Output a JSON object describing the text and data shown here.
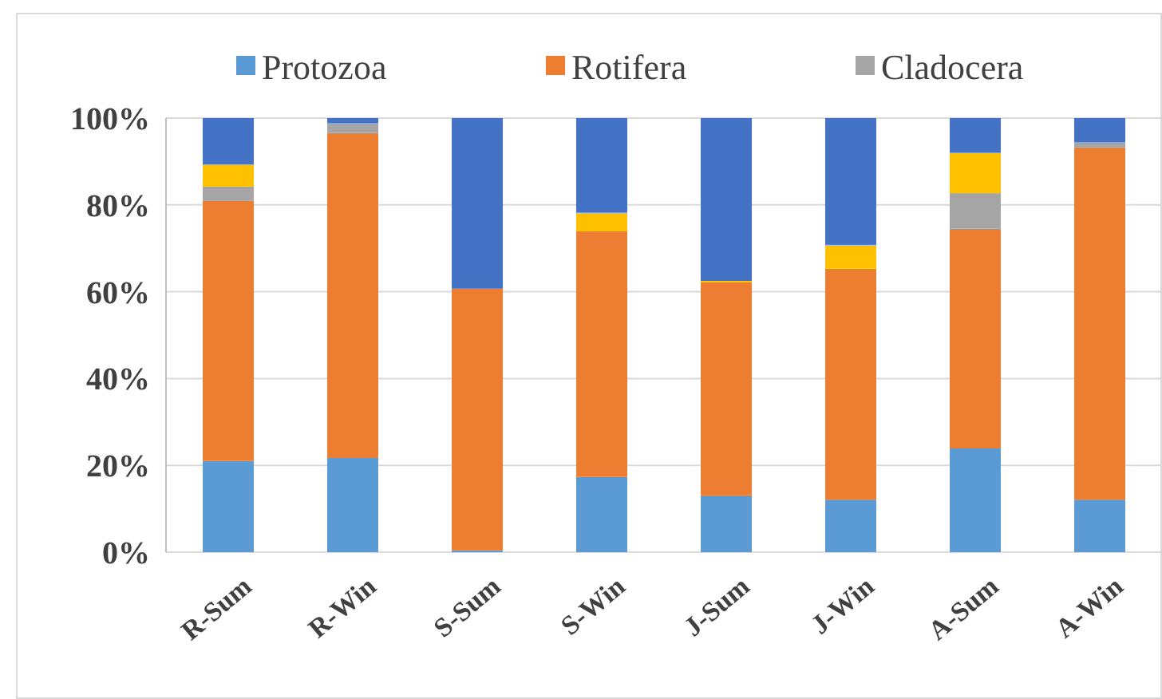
{
  "chart_data": {
    "type": "bar",
    "stacked": true,
    "categories": [
      "R-Sum",
      "R-Win",
      "S-Sum",
      "S-Win",
      "J-Sum",
      "J-Win",
      "A-Sum",
      "A-Win"
    ],
    "series": [
      {
        "name": "Protozoa",
        "color": "#5b9bd5",
        "values": [
          21,
          21.7,
          0.5,
          17.4,
          13.1,
          12.1,
          23.9,
          12.1
        ]
      },
      {
        "name": "Rotifera",
        "color": "#ed7d31",
        "values": [
          60,
          74.9,
          60.2,
          56.5,
          49.1,
          53.2,
          50.6,
          81.2
        ]
      },
      {
        "name": "Cladocera",
        "color": "#a5a5a5",
        "values": [
          3.3,
          2.2,
          null,
          null,
          null,
          0,
          8.2,
          1.1
        ]
      },
      {
        "color": "#ffc000",
        "values": [
          5,
          0,
          0,
          4.3,
          0.3,
          5.5,
          9.3,
          0
        ]
      },
      {
        "color": "#4472c4",
        "values": [
          10.7,
          1.2,
          39.3,
          21.8,
          37.5,
          29.2,
          8,
          5.6
        ]
      }
    ],
    "ylim": [
      0,
      100
    ],
    "yticks": [
      {
        "value": 0,
        "label": "0%"
      },
      {
        "value": 20,
        "label": "20%"
      },
      {
        "value": 40,
        "label": "40%"
      },
      {
        "value": 60,
        "label": "60%"
      },
      {
        "value": 80,
        "label": "80%"
      },
      {
        "value": 100,
        "label": "100%"
      }
    ],
    "grid": "y",
    "legend": "top"
  }
}
